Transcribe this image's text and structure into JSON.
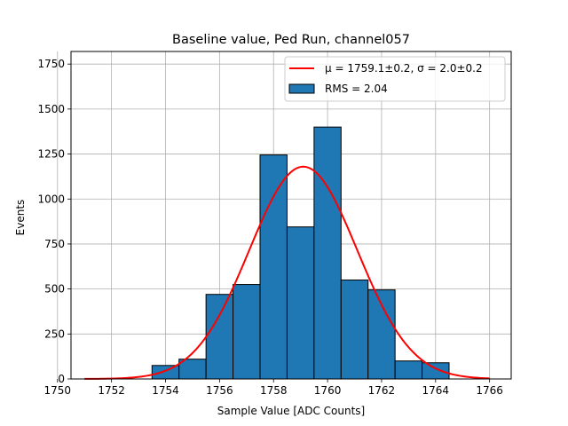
{
  "chart_data": {
    "type": "bar",
    "title": "Baseline value, Ped Run, channel057",
    "xlabel": "Sample Value [ADC Counts]",
    "ylabel": "Events",
    "xlim": [
      1750.5,
      1766.8
    ],
    "ylim": [
      0,
      1820
    ],
    "xticks": [
      1750,
      1752,
      1754,
      1756,
      1758,
      1760,
      1762,
      1764,
      1766
    ],
    "yticks": [
      0,
      250,
      500,
      750,
      1000,
      1250,
      1500,
      1750
    ],
    "grid": true,
    "legend_position": "top-right",
    "histogram": {
      "name": "RMS = 2.04",
      "color": "#1f77b4",
      "bin_edges": [
        1753.5,
        1754.5,
        1755.5,
        1756.5,
        1757.5,
        1758.5,
        1759.5,
        1760.5,
        1761.5,
        1762.5,
        1763.5,
        1764.5
      ],
      "counts": [
        75,
        110,
        470,
        525,
        1245,
        845,
        1400,
        550,
        495,
        100,
        90
      ]
    },
    "fit": {
      "name": "$\\mu = 1759.1 \\pm 0.2$, $\\sigma = 2.0 \\pm 0.2$",
      "legend_text": "μ = 1759.1±0.2, σ = 2.0±0.2",
      "color": "#ff0000",
      "mu": 1759.1,
      "sigma": 2.0,
      "amplitude": 1180,
      "x_range": [
        1751,
        1766
      ]
    }
  }
}
